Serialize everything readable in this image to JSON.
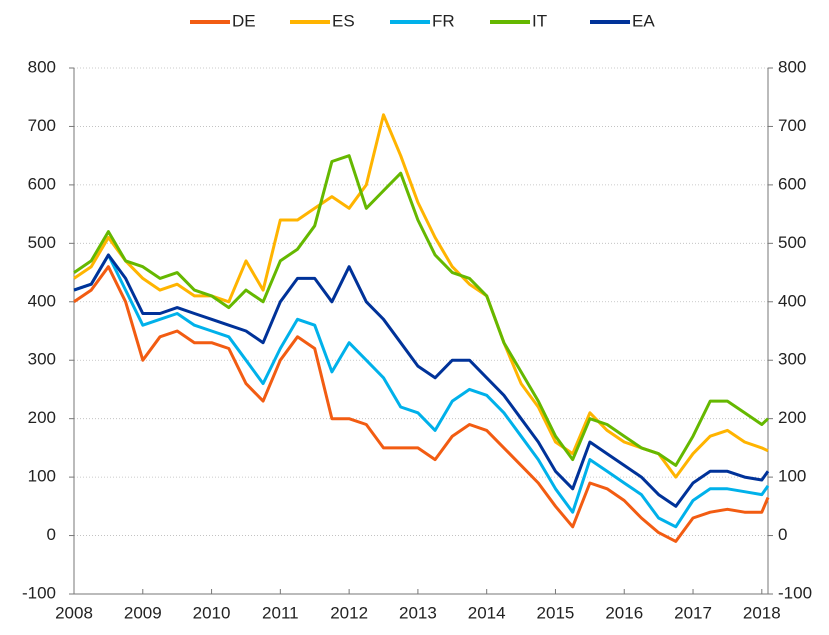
{
  "chart_data": {
    "type": "line",
    "x": [
      2008,
      2008.25,
      2008.5,
      2008.75,
      2009,
      2009.25,
      2009.5,
      2009.75,
      2010,
      2010.25,
      2010.5,
      2010.75,
      2011,
      2011.25,
      2011.5,
      2011.75,
      2012,
      2012.25,
      2012.5,
      2012.75,
      2013,
      2013.25,
      2013.5,
      2013.75,
      2014,
      2014.25,
      2014.5,
      2014.75,
      2015,
      2015.25,
      2015.5,
      2015.75,
      2016,
      2016.25,
      2016.5,
      2016.75,
      2017,
      2017.25,
      2017.5,
      2017.75,
      2018,
      2018.09
    ],
    "series": [
      {
        "name": "DE",
        "color": "#f25c12",
        "values": [
          400,
          420,
          460,
          400,
          300,
          340,
          350,
          330,
          330,
          320,
          260,
          230,
          300,
          340,
          320,
          200,
          200,
          190,
          150,
          150,
          150,
          130,
          170,
          190,
          180,
          150,
          120,
          90,
          50,
          15,
          90,
          80,
          60,
          30,
          5,
          -10,
          30,
          40,
          45,
          40,
          40,
          65
        ]
      },
      {
        "name": "ES",
        "color": "#ffb400",
        "values": [
          440,
          460,
          510,
          470,
          440,
          420,
          430,
          410,
          410,
          400,
          470,
          420,
          540,
          540,
          560,
          580,
          560,
          600,
          720,
          650,
          570,
          510,
          460,
          430,
          410,
          330,
          260,
          220,
          160,
          140,
          210,
          180,
          160,
          150,
          140,
          100,
          140,
          170,
          180,
          160,
          150,
          145
        ]
      },
      {
        "name": "FR",
        "color": "#00b1ea",
        "values": [
          420,
          430,
          480,
          420,
          360,
          370,
          380,
          360,
          350,
          340,
          300,
          260,
          320,
          370,
          360,
          280,
          330,
          300,
          270,
          220,
          210,
          180,
          230,
          250,
          240,
          210,
          170,
          130,
          80,
          40,
          130,
          110,
          90,
          70,
          30,
          15,
          60,
          80,
          80,
          75,
          70,
          85
        ]
      },
      {
        "name": "IT",
        "color": "#65b800",
        "values": [
          450,
          470,
          520,
          470,
          460,
          440,
          450,
          420,
          410,
          390,
          420,
          400,
          470,
          490,
          530,
          640,
          650,
          560,
          590,
          620,
          540,
          480,
          450,
          440,
          410,
          330,
          280,
          230,
          170,
          130,
          200,
          190,
          170,
          150,
          140,
          120,
          170,
          230,
          230,
          210,
          190,
          200
        ]
      },
      {
        "name": "EA",
        "color": "#003299",
        "values": [
          420,
          430,
          480,
          440,
          380,
          380,
          390,
          380,
          370,
          360,
          350,
          330,
          400,
          440,
          440,
          400,
          460,
          400,
          370,
          330,
          290,
          270,
          300,
          300,
          270,
          240,
          200,
          160,
          110,
          80,
          160,
          140,
          120,
          100,
          70,
          50,
          90,
          110,
          110,
          100,
          95,
          110
        ]
      }
    ],
    "xlim": [
      2008,
      2018.09
    ],
    "xticks": [
      2008,
      2009,
      2010,
      2011,
      2012,
      2013,
      2014,
      2015,
      2016,
      2017,
      2018
    ],
    "ylim": [
      -100,
      800
    ],
    "yticks": [
      -100,
      0,
      100,
      200,
      300,
      400,
      500,
      600,
      700,
      800
    ],
    "y2lim": [
      -100,
      800
    ],
    "y2ticks": [
      -100,
      0,
      100,
      200,
      300,
      400,
      500,
      600,
      700,
      800
    ],
    "grid": true,
    "legend": "top"
  }
}
